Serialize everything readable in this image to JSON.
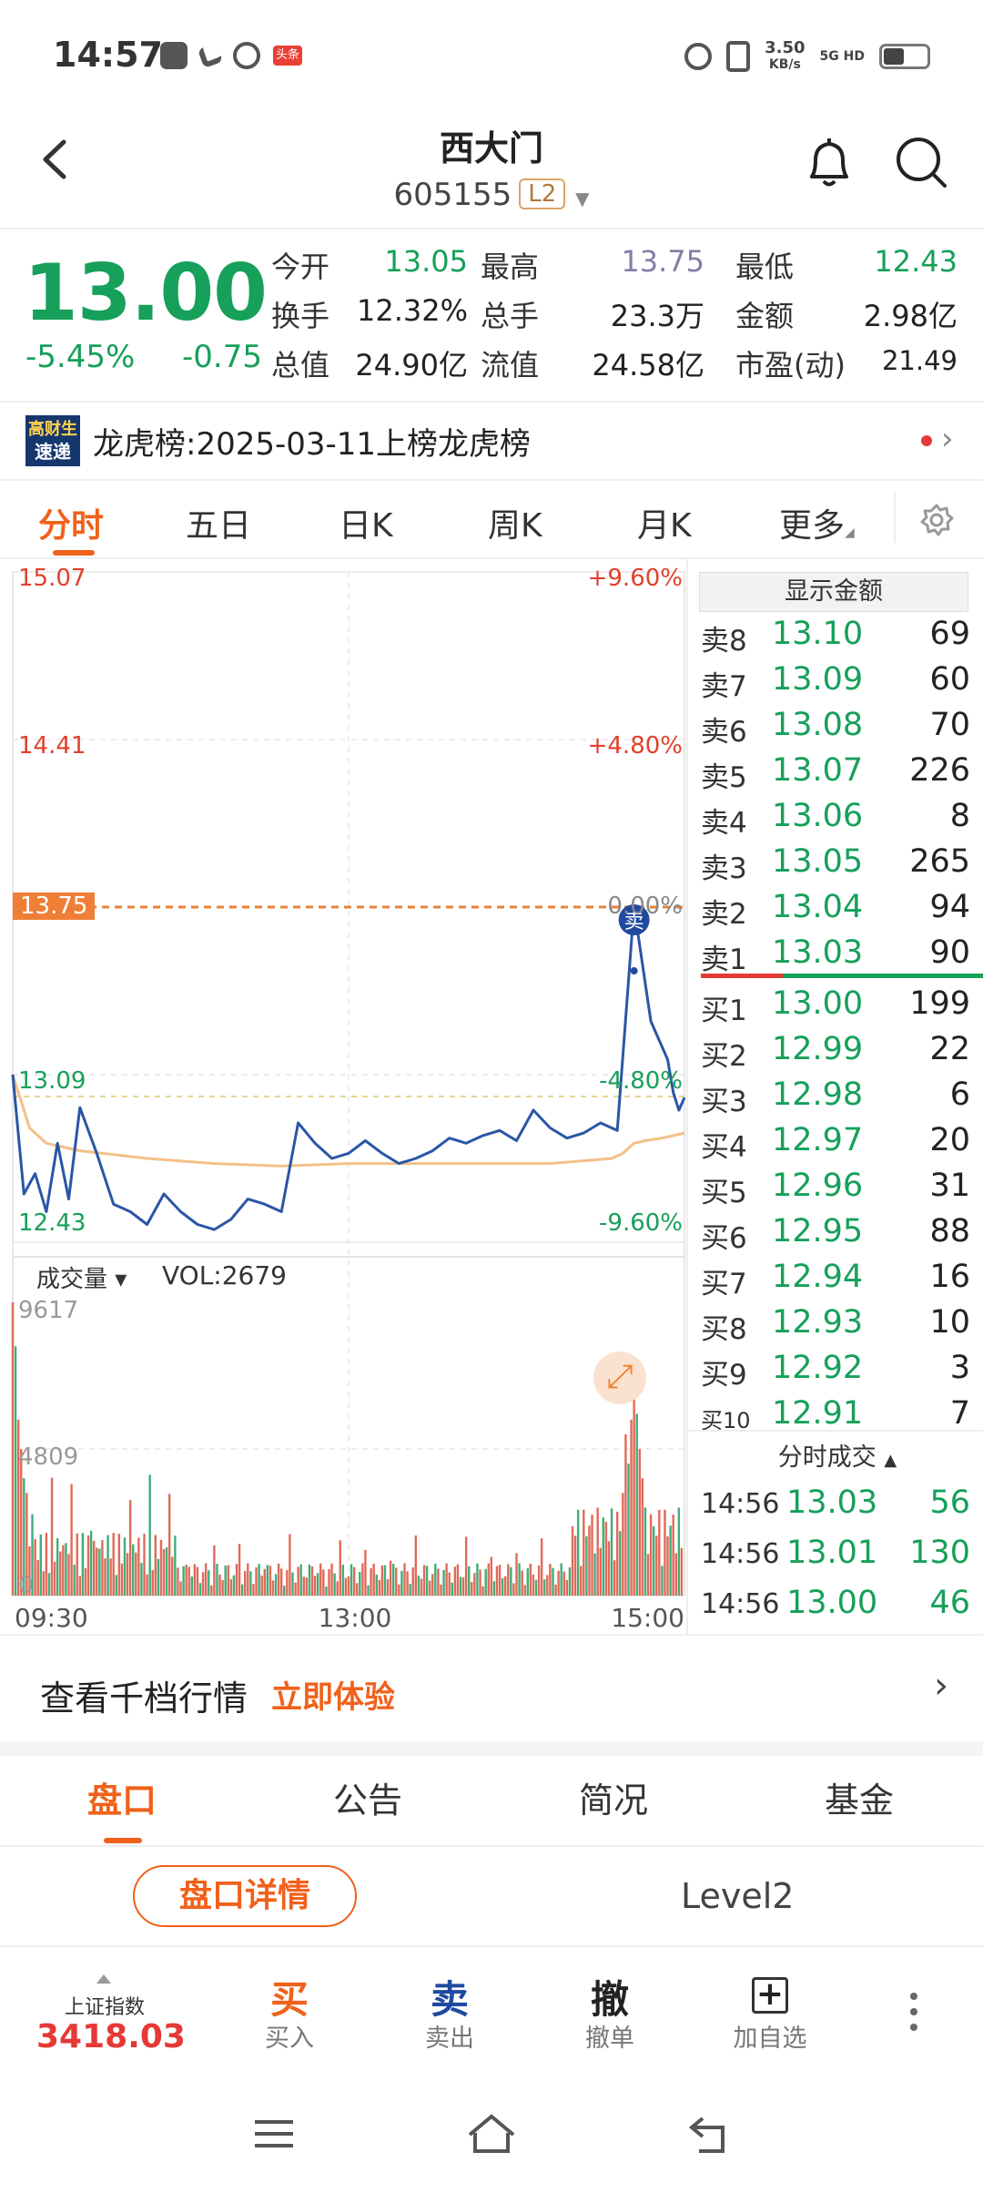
{
  "status_bar": {
    "time": "14:57",
    "speed_value": "3.50",
    "speed_unit": "KB/s",
    "net1": "5G HD",
    "badge": "头条"
  },
  "header": {
    "title": "西大门",
    "code": "605155",
    "level": "L2"
  },
  "quote": {
    "price": "13.00",
    "change_pct": "-5.45%",
    "change": "-0.75",
    "stats": [
      {
        "label": "今开",
        "value": "13.05",
        "color": "#16a05a"
      },
      {
        "label": "最高",
        "value": "13.75",
        "color": "#7f7fa8"
      },
      {
        "label": "最低",
        "value": "12.43",
        "color": "#16a05a"
      },
      {
        "label": "换手",
        "value": "12.32%",
        "color": "#222222"
      },
      {
        "label": "总手",
        "value": "23.3万",
        "color": "#222222"
      },
      {
        "label": "金额",
        "value": "2.98亿",
        "color": "#222222"
      },
      {
        "label": "总值",
        "value": "24.90亿",
        "color": "#222222"
      },
      {
        "label": "流值",
        "value": "24.58亿",
        "color": "#222222"
      },
      {
        "label": "市盈(动)",
        "value": "21.49",
        "color": "#222222"
      }
    ]
  },
  "news": {
    "logo_top": "高财生",
    "logo_bottom": "速递",
    "text": "龙虎榜:2025-03-11上榜龙虎榜"
  },
  "chart_tabs": [
    "分时",
    "五日",
    "日K",
    "周K",
    "月K",
    "更多"
  ],
  "chart": {
    "y_left": [
      "15.07",
      "14.41",
      "13.75",
      "13.09",
      "12.43"
    ],
    "y_right": [
      "+9.60%",
      "+4.80%",
      "0.00%",
      "-4.80%",
      "-9.60%"
    ],
    "marker": "卖",
    "volume_label": "成交量",
    "vol_text": "VOL:2679",
    "vol_axis": [
      "9617",
      "4809",
      "0"
    ],
    "x_axis": [
      "09:30",
      "13:00",
      "15:00"
    ]
  },
  "chart_data": {
    "type": "line",
    "title": "",
    "xlabel": "",
    "ylabel": "",
    "x_ticks": [
      "09:30",
      "13:00",
      "15:00"
    ],
    "ylim": [
      12.43,
      15.07
    ],
    "prev_close": 13.75,
    "series": [
      {
        "name": "",
        "color": "#2b56a6",
        "x": [
          0,
          4,
          8,
          12,
          16,
          20,
          24,
          30,
          36,
          42,
          48,
          54,
          60,
          66,
          72,
          78,
          84,
          90,
          96,
          102,
          108,
          114,
          120,
          126,
          132,
          138,
          144,
          150,
          156,
          162,
          168,
          174,
          180,
          186,
          192,
          198,
          204,
          210,
          216,
          222,
          228,
          234,
          236,
          238,
          240
        ],
        "y": [
          13.09,
          12.62,
          12.7,
          12.55,
          12.82,
          12.6,
          12.96,
          12.78,
          12.58,
          12.55,
          12.5,
          12.62,
          12.55,
          12.5,
          12.48,
          12.52,
          12.6,
          12.58,
          12.55,
          12.9,
          12.82,
          12.76,
          12.78,
          12.83,
          12.78,
          12.74,
          12.76,
          12.79,
          12.84,
          12.82,
          12.85,
          12.87,
          12.83,
          12.95,
          12.88,
          12.84,
          12.86,
          12.9,
          12.87,
          13.75,
          13.3,
          13.15,
          13.02,
          12.95,
          13.0
        ]
      },
      {
        "name": "",
        "color": "#f3c089",
        "x": [
          0,
          6,
          12,
          24,
          48,
          72,
          96,
          120,
          144,
          168,
          192,
          214,
          218,
          222,
          226,
          232,
          240
        ],
        "y": [
          13.09,
          12.88,
          12.82,
          12.79,
          12.76,
          12.74,
          12.73,
          12.74,
          12.74,
          12.74,
          12.74,
          12.76,
          12.78,
          12.82,
          12.83,
          12.84,
          12.86
        ]
      }
    ],
    "volume_max": 9617
  },
  "order_book": {
    "show_amount_label": "显示金额",
    "asks": [
      {
        "label": "卖8",
        "price": "13.10",
        "vol": "69"
      },
      {
        "label": "卖7",
        "price": "13.09",
        "vol": "60"
      },
      {
        "label": "卖6",
        "price": "13.08",
        "vol": "70"
      },
      {
        "label": "卖5",
        "price": "13.07",
        "vol": "226"
      },
      {
        "label": "卖4",
        "price": "13.06",
        "vol": "8"
      },
      {
        "label": "卖3",
        "price": "13.05",
        "vol": "265"
      },
      {
        "label": "卖2",
        "price": "13.04",
        "vol": "94"
      },
      {
        "label": "卖1",
        "price": "13.03",
        "vol": "90"
      }
    ],
    "bids": [
      {
        "label": "买1",
        "price": "13.00",
        "vol": "199"
      },
      {
        "label": "买2",
        "price": "12.99",
        "vol": "22"
      },
      {
        "label": "买3",
        "price": "12.98",
        "vol": "6"
      },
      {
        "label": "买4",
        "price": "12.97",
        "vol": "20"
      },
      {
        "label": "买5",
        "price": "12.96",
        "vol": "31"
      },
      {
        "label": "买6",
        "price": "12.95",
        "vol": "88"
      },
      {
        "label": "买7",
        "price": "12.94",
        "vol": "16"
      },
      {
        "label": "买8",
        "price": "12.93",
        "vol": "10"
      },
      {
        "label": "买9",
        "price": "12.92",
        "vol": "3"
      },
      {
        "label": "买10",
        "price": "12.91",
        "vol": "7"
      }
    ],
    "trades_header": "分时成交",
    "trades": [
      {
        "time": "14:56",
        "price": "13.03",
        "vol": "56"
      },
      {
        "time": "14:56",
        "price": "13.01",
        "vol": "130"
      },
      {
        "time": "14:56",
        "price": "13.00",
        "vol": "46"
      }
    ]
  },
  "promo": {
    "text": "查看千档行情",
    "link": "立即体验"
  },
  "bottom_tabs": [
    "盘口",
    "公告",
    "简况",
    "基金"
  ],
  "pankou": {
    "detail_button": "盘口详情",
    "level2": "Level2"
  },
  "action_bar": {
    "index_name": "上证指数",
    "index_value": "3418.03",
    "actions": [
      {
        "icon": "买",
        "label": "买入",
        "color": "#f0611a"
      },
      {
        "icon": "卖",
        "label": "卖出",
        "color": "#1f4aa0"
      },
      {
        "icon": "撤",
        "label": "撤单",
        "color": "#333333"
      },
      {
        "icon": "+",
        "label": "加自选",
        "color": "#333333"
      }
    ]
  }
}
